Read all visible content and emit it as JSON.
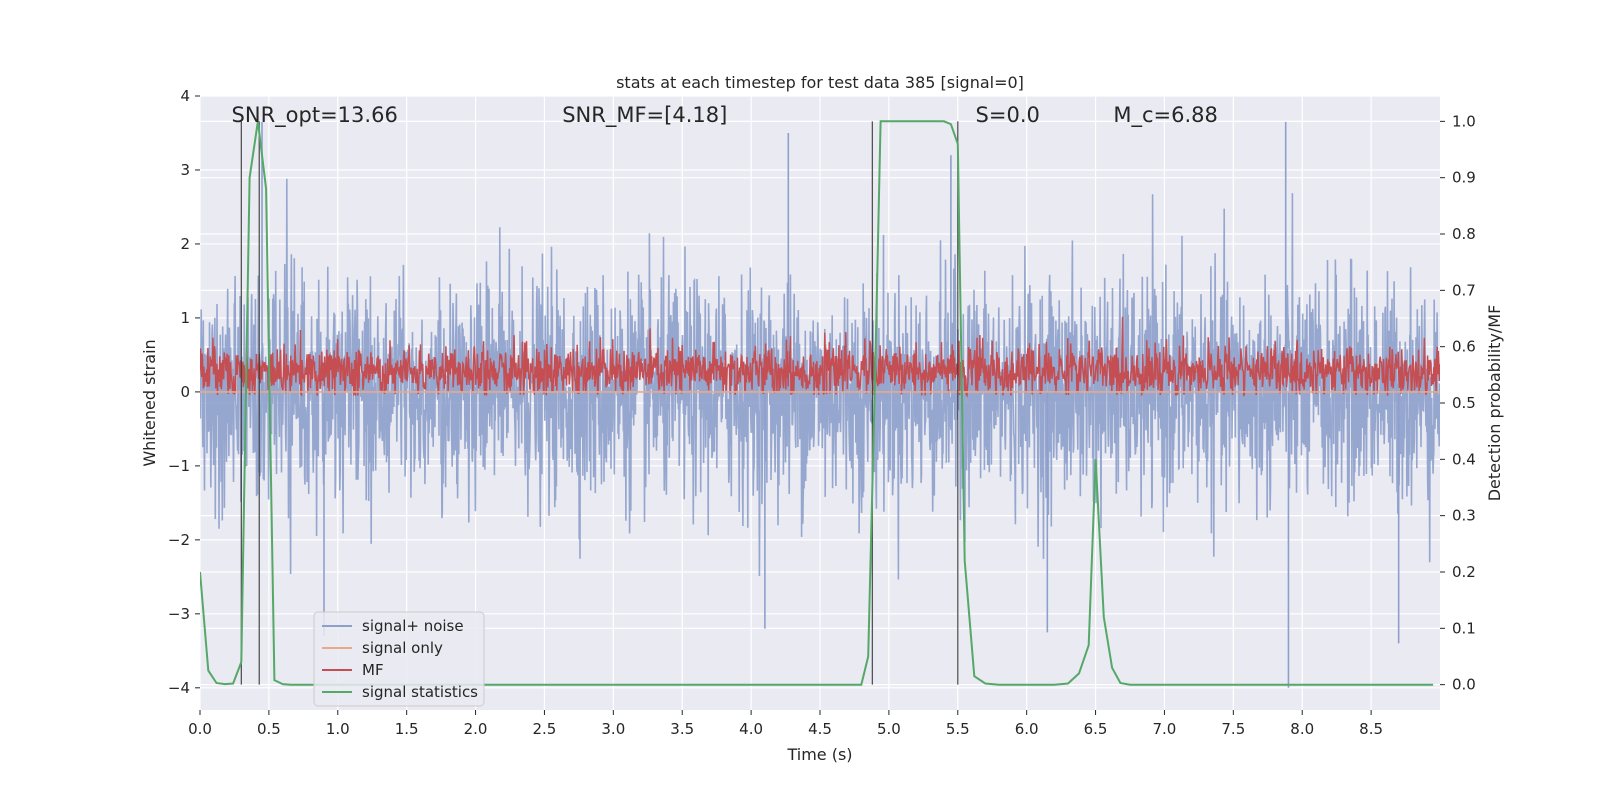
{
  "chart_data": {
    "type": "line",
    "title": "stats at each timestep for test data 385 [signal=0]",
    "xlabel": "Time (s)",
    "ylabel": "Whitened strain",
    "y2label": "Detection probability/MF",
    "xlim": [
      0,
      9.0
    ],
    "ylim": [
      -4.3,
      4.0
    ],
    "y2lim": [
      -0.045,
      1.045
    ],
    "x_ticks": [
      0.0,
      0.5,
      1.0,
      1.5,
      2.0,
      2.5,
      3.0,
      3.5,
      4.0,
      4.5,
      5.0,
      5.5,
      6.0,
      6.5,
      7.0,
      7.5,
      8.0,
      8.5
    ],
    "x_tick_labels": [
      "0.0",
      "0.5",
      "1.0",
      "1.5",
      "2.0",
      "2.5",
      "3.0",
      "3.5",
      "4.0",
      "4.5",
      "5.0",
      "5.5",
      "6.0",
      "6.5",
      "7.0",
      "7.5",
      "8.0",
      "8.5"
    ],
    "y_ticks": [
      4,
      3,
      2,
      1,
      0,
      -1,
      -2,
      -3,
      -4
    ],
    "y_tick_labels": [
      "4",
      "3",
      "2",
      "1",
      "0",
      "−1",
      "−2",
      "−3",
      "−4"
    ],
    "y2_ticks": [
      1.0,
      0.9,
      0.8,
      0.7,
      0.6,
      0.5,
      0.4,
      0.3,
      0.2,
      0.1,
      0.0
    ],
    "y2_tick_labels": [
      "1.0",
      "0.9",
      "0.8",
      "0.7",
      "0.6",
      "0.5",
      "0.4",
      "0.3",
      "0.2",
      "0.1",
      "0.0"
    ],
    "grid": true,
    "legend_position": "lower-left",
    "annotations": [
      {
        "name": "snr-opt",
        "text": "SNR_opt=13.66",
        "x": 0.2
      },
      {
        "name": "snr-mf",
        "text": "SNR_MF=[4.18]",
        "x": 2.6
      },
      {
        "name": "s-value",
        "text": "S=0.0",
        "x": 5.6
      },
      {
        "name": "mc-value",
        "text": "M_c=6.88",
        "x": 6.6
      }
    ],
    "vlines": [
      0.3,
      0.43,
      4.88,
      5.5
    ],
    "series": [
      {
        "name": "signal+ noise",
        "color": "#8da0cb",
        "axis": "left",
        "kind": "noise",
        "spread_std": 0.75,
        "peaks": [
          {
            "x": 0.45,
            "y": 3.65
          },
          {
            "x": 0.9,
            "y": -3.3
          },
          {
            "x": 4.1,
            "y": -3.2
          },
          {
            "x": 5.45,
            "y": 3.2
          },
          {
            "x": 6.15,
            "y": -3.25
          },
          {
            "x": 7.88,
            "y": 3.65
          },
          {
            "x": 7.9,
            "y": -4.0
          },
          {
            "x": 8.7,
            "y": -3.4
          },
          {
            "x": 4.27,
            "y": 3.5
          }
        ]
      },
      {
        "name": "signal only",
        "color": "#e8a88a",
        "axis": "left",
        "kind": "flat",
        "value": 0.0
      },
      {
        "name": "MF",
        "color": "#c44e52",
        "axis": "left",
        "kind": "band",
        "center": 0.28,
        "halfwidth": 0.35
      },
      {
        "name": "signal statistics",
        "color": "#55a868",
        "axis": "right",
        "kind": "curve",
        "x": [
          0.0,
          0.06,
          0.12,
          0.18,
          0.24,
          0.3,
          0.36,
          0.42,
          0.48,
          0.54,
          0.6,
          0.66,
          0.72,
          1.0,
          2.0,
          3.0,
          4.0,
          4.6,
          4.8,
          4.85,
          4.9,
          4.94,
          5.0,
          5.2,
          5.4,
          5.45,
          5.5,
          5.55,
          5.62,
          5.7,
          5.8,
          6.0,
          6.2,
          6.3,
          6.38,
          6.45,
          6.5,
          6.56,
          6.62,
          6.68,
          6.75,
          7.0,
          8.0,
          8.95
        ],
        "y": [
          0.2,
          0.025,
          0.003,
          0.001,
          0.002,
          0.04,
          0.9,
          1.0,
          0.88,
          0.008,
          0.001,
          0.0,
          0.0,
          0.0,
          0.0,
          0.0,
          0.0,
          0.0,
          0.0,
          0.05,
          0.55,
          1.0,
          1.0,
          1.0,
          1.0,
          0.995,
          0.96,
          0.22,
          0.015,
          0.002,
          0.0,
          0.0,
          0.0,
          0.002,
          0.02,
          0.07,
          0.4,
          0.12,
          0.03,
          0.003,
          0.0,
          0.0,
          0.0,
          0.0
        ]
      }
    ]
  }
}
